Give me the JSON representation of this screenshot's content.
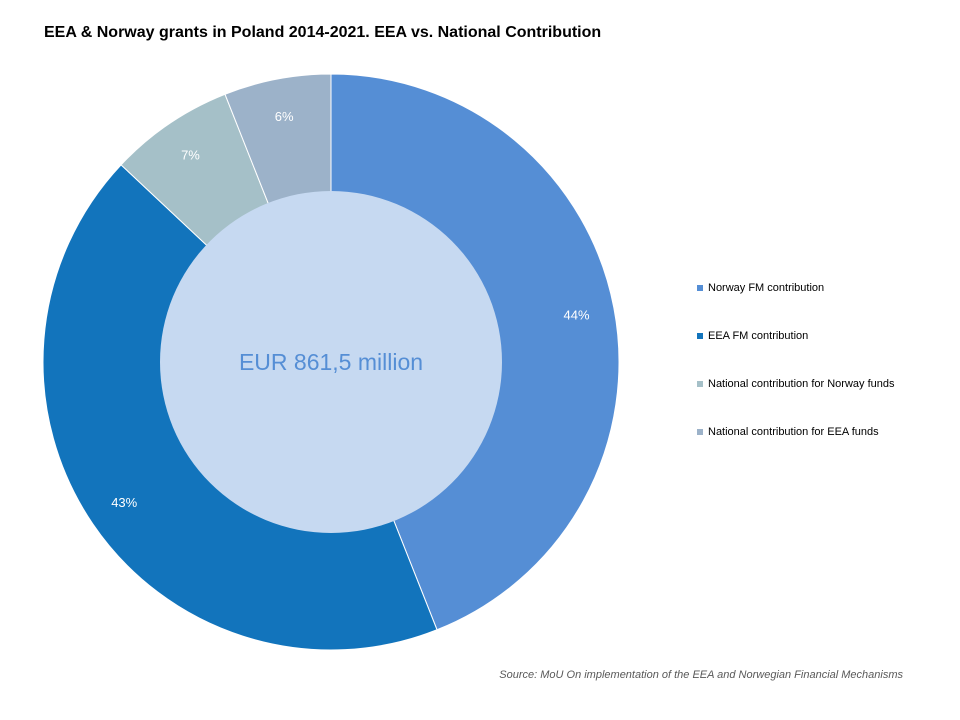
{
  "title": "EEA & Norway grants in Poland 2014-2021. EEA vs. National Contribution",
  "center_label": "EUR 861,5 million",
  "source": "Source: MoU On implementation of the EEA and Norwegian Financial Mechanisms",
  "colors": {
    "center_fill": "#c6d9f1",
    "center_text": "#558ed5",
    "label_text": "#ffffff",
    "slice_border": "#ffffff"
  },
  "chart_data": {
    "type": "pie",
    "variant": "donut",
    "title": "EEA & Norway grants in Poland 2014-2021. EEA vs. National Contribution",
    "center_label": "EUR 861,5 million",
    "unit": "%",
    "legend_position": "right",
    "series": [
      {
        "name": "Norway FM contribution",
        "value": 44,
        "label": "44%",
        "color": "#558ed5"
      },
      {
        "name": "EEA FM contribution",
        "value": 43,
        "label": "43%",
        "color": "#1274bc"
      },
      {
        "name": "National contribution for Norway funds",
        "value": 7,
        "label": "7%",
        "color": "#a5c0c8"
      },
      {
        "name": "National contribution for EEA funds",
        "value": 6,
        "label": "6%",
        "color": "#9cb2c9"
      }
    ]
  }
}
